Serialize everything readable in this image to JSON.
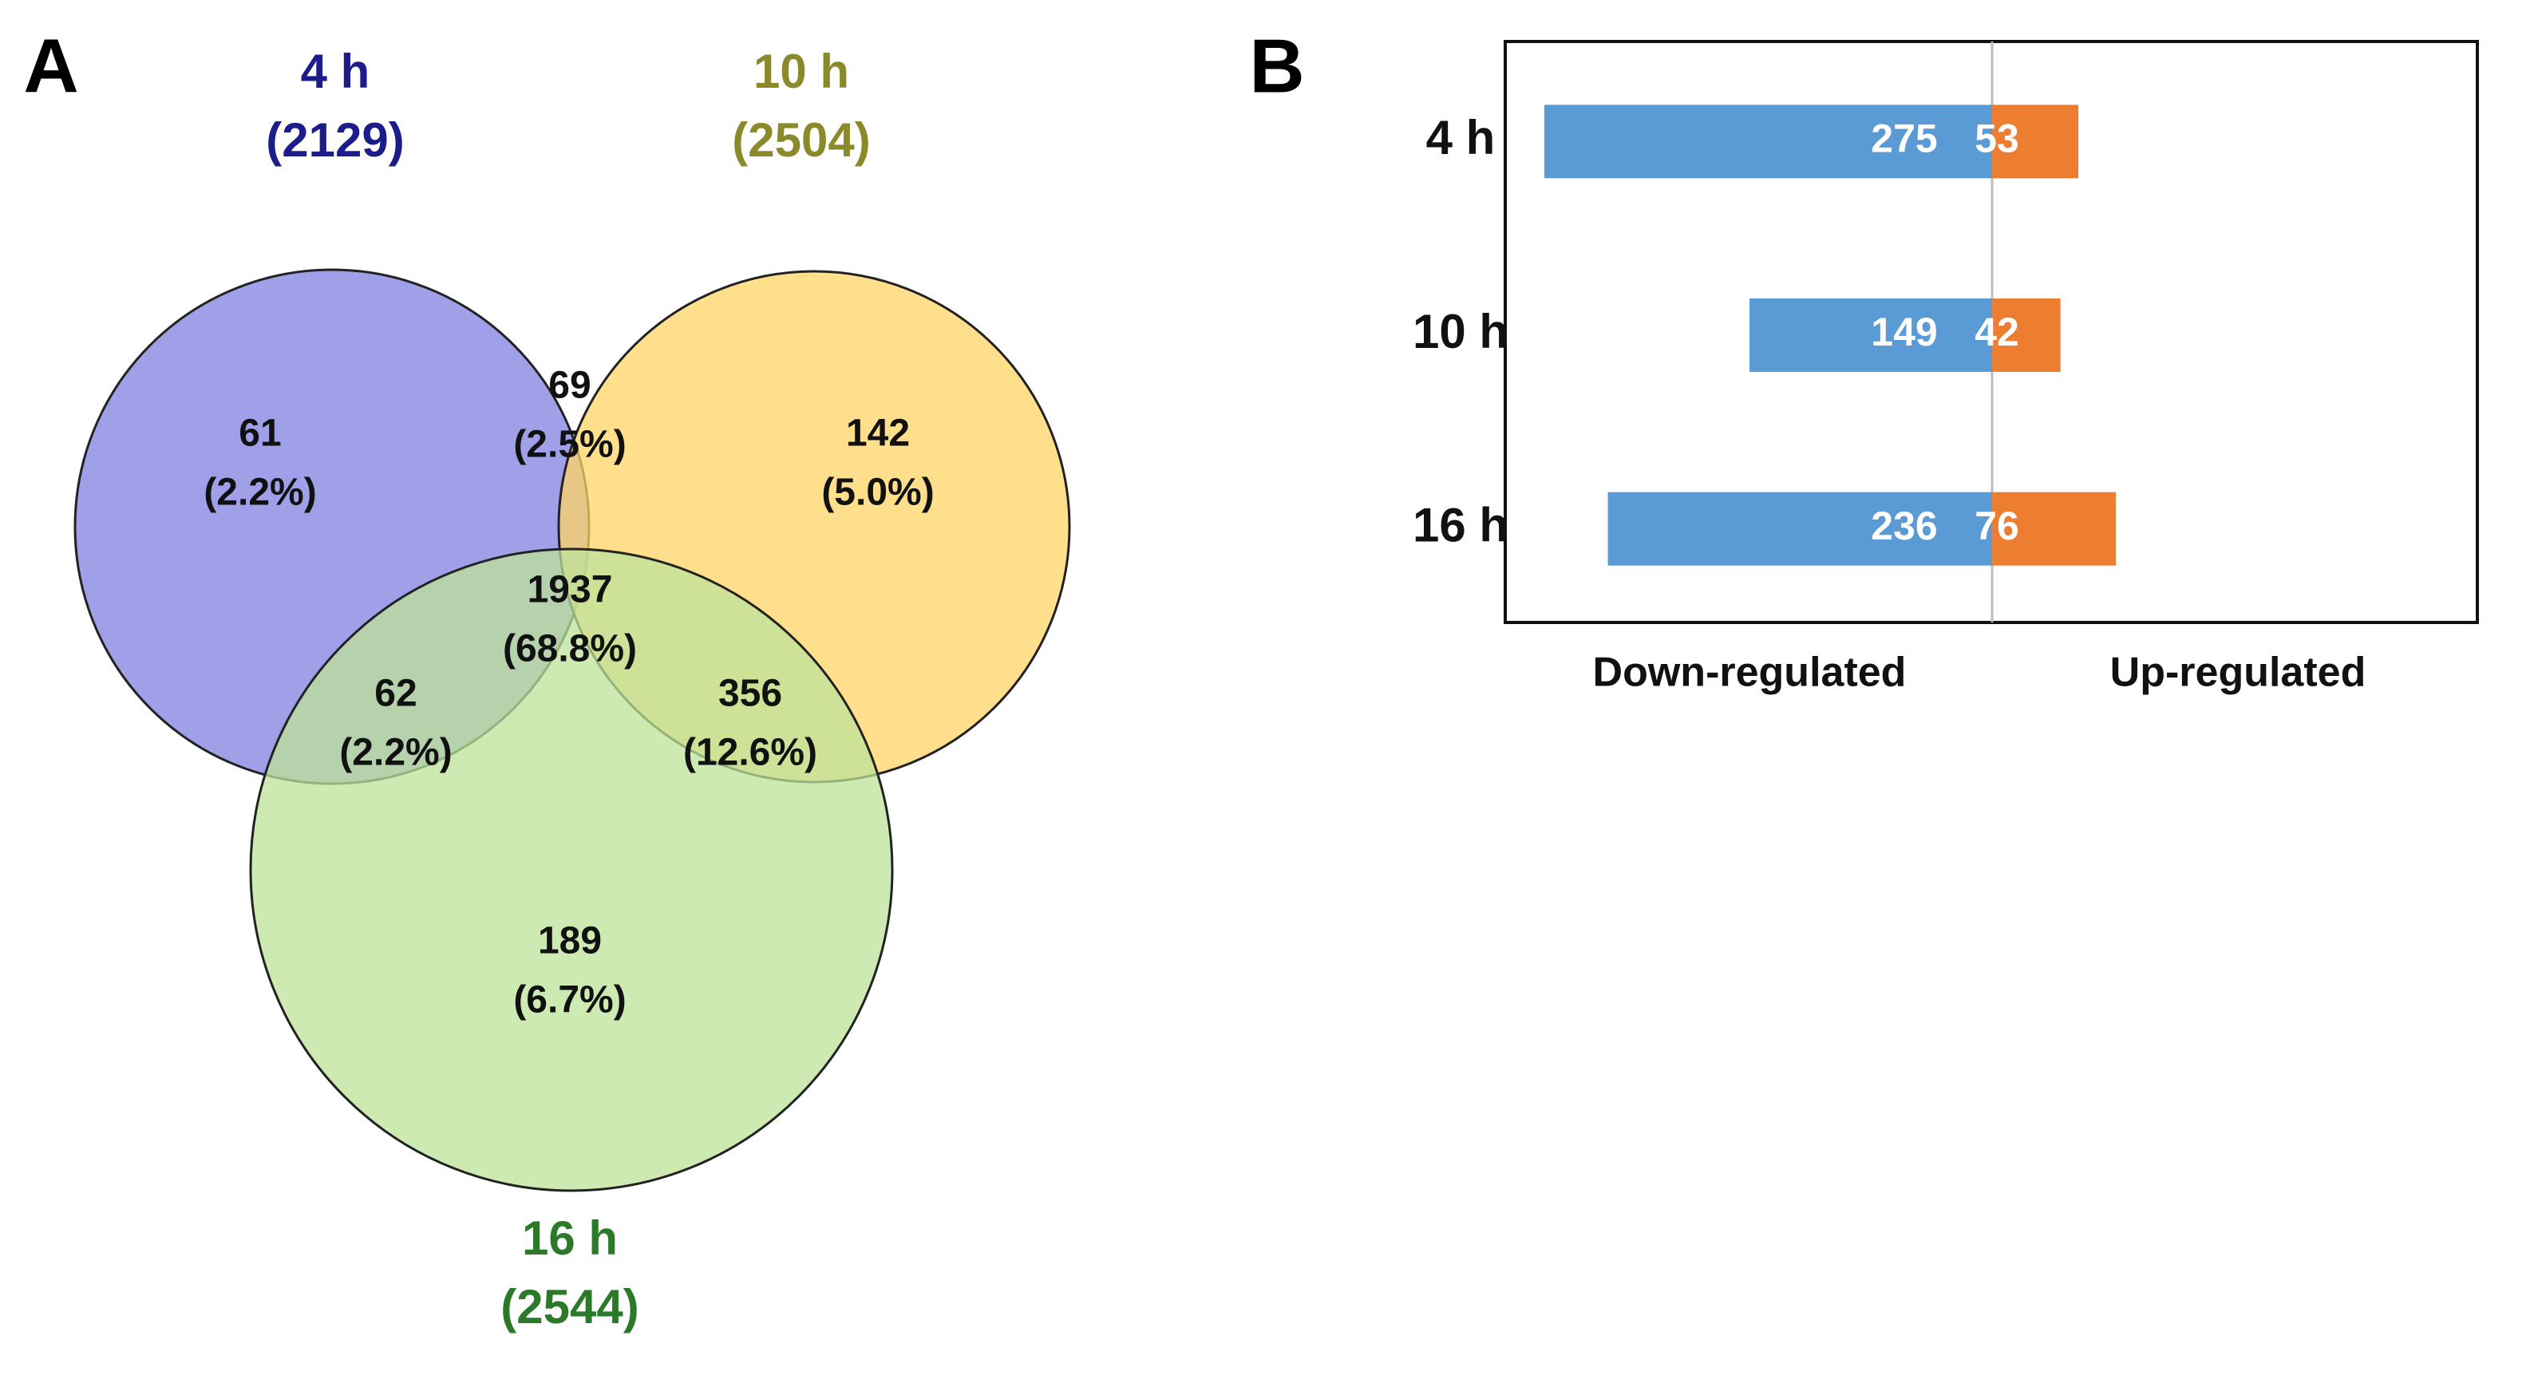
{
  "chart_data": [
    {
      "type": "venn",
      "panel_label": "A",
      "sets": [
        {
          "name": "4 h",
          "size": 2129,
          "size_label": "(2129)",
          "color": "#8080e0",
          "label_color": "#1c1c8a"
        },
        {
          "name": "10 h",
          "size": 2504,
          "size_label": "(2504)",
          "color": "#ffd466",
          "label_color": "#8a8a2a"
        },
        {
          "name": "16 h",
          "size": 2544,
          "size_label": "(2544)",
          "color": "#bce39a",
          "label_color": "#2a7a2a"
        }
      ],
      "regions": [
        {
          "sets": [
            "4 h"
          ],
          "value": 61,
          "percent": 2.2,
          "percent_label": "(2.2%)"
        },
        {
          "sets": [
            "4 h",
            "10 h"
          ],
          "value": 69,
          "percent": 2.5,
          "percent_label": "(2.5%)"
        },
        {
          "sets": [
            "10 h"
          ],
          "value": 142,
          "percent": 5.0,
          "percent_label": "(5.0%)"
        },
        {
          "sets": [
            "4 h",
            "10 h",
            "16 h"
          ],
          "value": 1937,
          "percent": 68.8,
          "percent_label": "(68.8%)"
        },
        {
          "sets": [
            "4 h",
            "16 h"
          ],
          "value": 62,
          "percent": 2.2,
          "percent_label": "(2.2%)"
        },
        {
          "sets": [
            "10 h",
            "16 h"
          ],
          "value": 356,
          "percent": 12.6,
          "percent_label": "(12.6%)"
        },
        {
          "sets": [
            "16 h"
          ],
          "value": 189,
          "percent": 6.7,
          "percent_label": "(6.7%)"
        }
      ]
    },
    {
      "type": "diverging-bar",
      "panel_label": "B",
      "categories": [
        "4 h",
        "10 h",
        "16 h"
      ],
      "series": [
        {
          "name": "Down-regulated",
          "color": "#5b9bd5",
          "direction": "left",
          "values": [
            275,
            149,
            236
          ]
        },
        {
          "name": "Up-regulated",
          "color": "#ed7d31",
          "direction": "right",
          "values": [
            53,
            42,
            76
          ]
        }
      ]
    }
  ]
}
